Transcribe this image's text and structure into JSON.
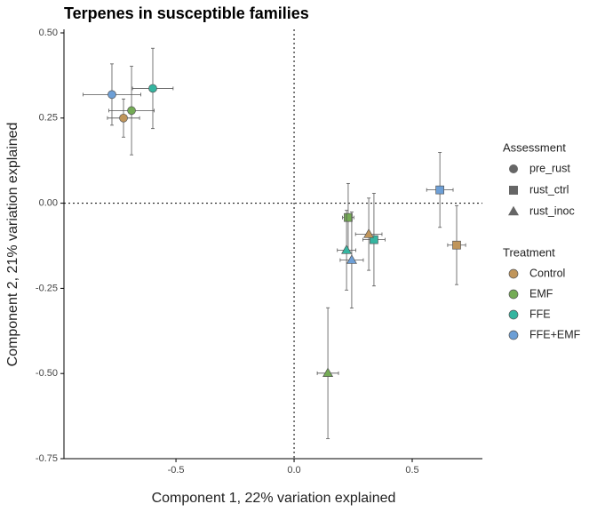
{
  "chart_data": {
    "type": "scatter",
    "title": "Terpenes in susceptible families",
    "x_label": "Component 1, 22% variation explained",
    "y_label": "Component 2, 21% variation explained",
    "xlim": [
      -0.974,
      0.797
    ],
    "ylim": [
      -0.75,
      0.5
    ],
    "xticks": [
      -0.5,
      {
        "value": 0,
        "label": "0.0"
      },
      0.5
    ],
    "yticks": [
      {
        "value": 0.5,
        "label": "0.50"
      },
      0.25,
      {
        "value": 0,
        "label": "0.00"
      },
      -0.25,
      {
        "value": -0.5,
        "label": "-0.50"
      },
      -0.75
    ],
    "hlines": [
      0
    ],
    "vlines": [
      0
    ],
    "shape_legend": {
      "title": "Assessment",
      "labels": [
        "pre_rust",
        "rust_ctrl",
        "rust_inoc"
      ],
      "shapes": [
        "circle",
        "square",
        "triangle"
      ],
      "color": "#666666"
    },
    "color_legend": {
      "title": "Treatment",
      "labels": [
        "Control",
        "EMF",
        "FFE",
        "FFE+EMF"
      ],
      "colors": [
        "#c0955a",
        "#74ab55",
        "#35b5a0",
        "#6d9fd6"
      ]
    },
    "points": [
      {
        "assessment": "pre_rust",
        "treatment": "FFE+EMF",
        "x": -0.771,
        "y": 0.319,
        "xerr": 0.122,
        "yerr": 0.09
      },
      {
        "assessment": "pre_rust",
        "treatment": "FFE",
        "x": -0.598,
        "y": 0.337,
        "xerr": 0.086,
        "yerr": 0.118
      },
      {
        "assessment": "pre_rust",
        "treatment": "EMF",
        "x": -0.688,
        "y": 0.272,
        "xerr": 0.096,
        "yerr": 0.13
      },
      {
        "assessment": "pre_rust",
        "treatment": "Control",
        "x": -0.722,
        "y": 0.25,
        "xerr": 0.068,
        "yerr": 0.056
      },
      {
        "assessment": "rust_ctrl",
        "treatment": "FFE+EMF",
        "x": 0.617,
        "y": 0.039,
        "xerr": 0.056,
        "yerr": 0.11
      },
      {
        "assessment": "rust_ctrl",
        "treatment": "Control",
        "x": 0.688,
        "y": -0.123,
        "xerr": 0.038,
        "yerr": 0.116
      },
      {
        "assessment": "rust_ctrl",
        "treatment": "EMF",
        "x": 0.229,
        "y": -0.042,
        "xerr": 0.024,
        "yerr": 0.1
      },
      {
        "assessment": "rust_ctrl",
        "treatment": "FFE",
        "x": 0.338,
        "y": -0.107,
        "xerr": 0.047,
        "yerr": 0.136
      },
      {
        "assessment": "rust_inoc",
        "treatment": "Control",
        "x": 0.316,
        "y": -0.091,
        "xerr": 0.056,
        "yerr": 0.106
      },
      {
        "assessment": "rust_inoc",
        "treatment": "FFE",
        "x": 0.222,
        "y": -0.138,
        "xerr": 0.039,
        "yerr": 0.117
      },
      {
        "assessment": "rust_inoc",
        "treatment": "FFE+EMF",
        "x": 0.244,
        "y": -0.167,
        "xerr": 0.049,
        "yerr": 0.141
      },
      {
        "assessment": "rust_inoc",
        "treatment": "EMF",
        "x": 0.143,
        "y": -0.499,
        "xerr": 0.045,
        "yerr": 0.192
      }
    ]
  }
}
